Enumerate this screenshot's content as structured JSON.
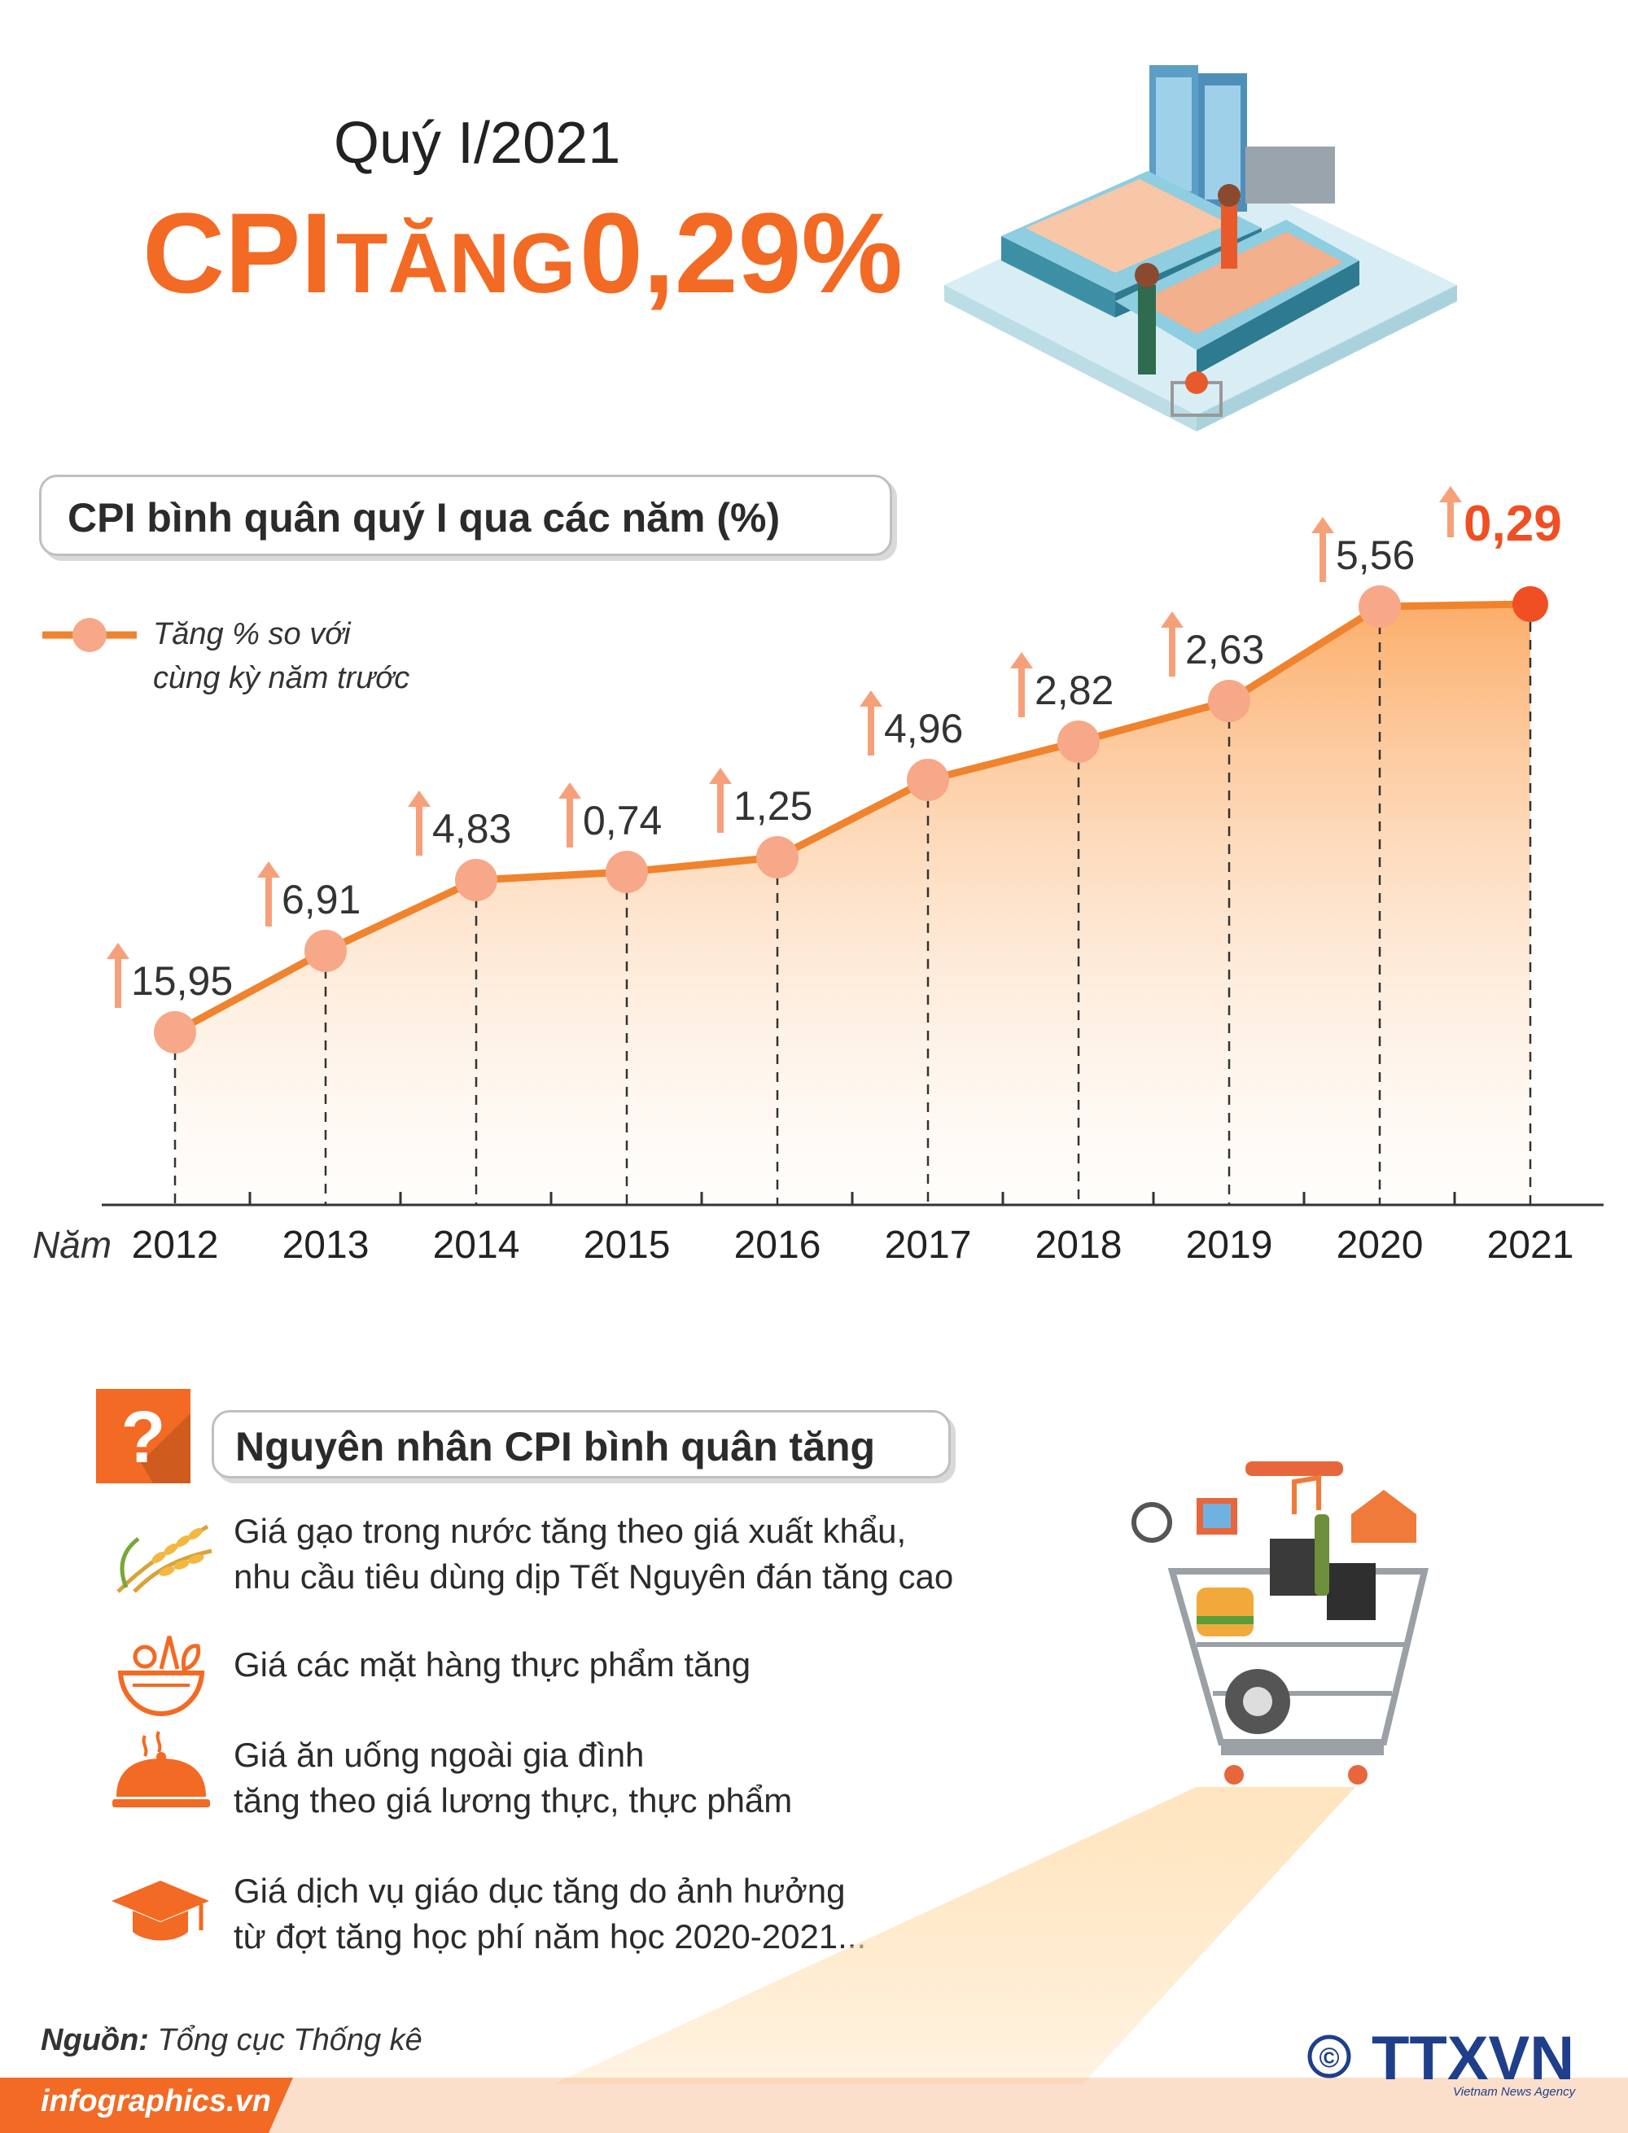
{
  "header": {
    "subtitle": "Quý I/2021",
    "cpi_word": "CPI",
    "tang_word": "TĂNG",
    "value": "0,29%"
  },
  "chart_section": {
    "title": "CPI bình quân quý I qua các năm (%)"
  },
  "legend": {
    "line1": "Tăng % so với",
    "line2": "cùng kỳ năm trước"
  },
  "chart_data": {
    "type": "line",
    "x": [
      "2012",
      "2013",
      "2014",
      "2015",
      "2016",
      "2017",
      "2018",
      "2019",
      "2020",
      "2021"
    ],
    "x_prefix": "Năm",
    "series": [
      {
        "name": "Tăng % so với cùng kỳ năm trước",
        "values": [
          15.95,
          6.91,
          4.83,
          0.74,
          1.25,
          4.96,
          2.82,
          2.63,
          5.56,
          0.29
        ],
        "labels": [
          "15,95",
          "6,91",
          "4,83",
          "0,74",
          "1,25",
          "4,96",
          "2,82",
          "2,63",
          "5,56",
          "0,29"
        ]
      }
    ],
    "highlight_index": 9,
    "colors": {
      "line": "#f0832d",
      "marker": "#f7a888",
      "highlight": "#f04e23",
      "arrow": "#f6a07a",
      "fill": "#fbcf9e"
    }
  },
  "reasons": {
    "title": "Nguyên nhân CPI bình quân tăng",
    "question_mark": "?",
    "items": [
      {
        "icon": "rice-icon",
        "lines": [
          "Giá gạo trong nước tăng theo giá xuất khẩu,",
          "nhu cầu tiêu dùng dịp Tết Nguyên đán tăng cao"
        ]
      },
      {
        "icon": "food-bowl-icon",
        "lines": [
          "Giá các mặt hàng thực phẩm tăng"
        ]
      },
      {
        "icon": "food-cloche-icon",
        "lines": [
          "Giá ăn uống ngoài gia đình",
          "tăng theo giá lương thực, thực phẩm"
        ]
      },
      {
        "icon": "graduation-cap-icon",
        "lines": [
          "Giá dịch vụ giáo dục tăng do ảnh hưởng",
          "từ đợt tăng học phí năm học 2020-2021..."
        ]
      }
    ]
  },
  "source": {
    "label": "Nguồn:",
    "value": "Tổng cục Thống kê"
  },
  "footer": {
    "site": "infographics.vn",
    "copyright": "©",
    "brand": "TTXVN",
    "brand_sub": "Vietnam News Agency"
  }
}
